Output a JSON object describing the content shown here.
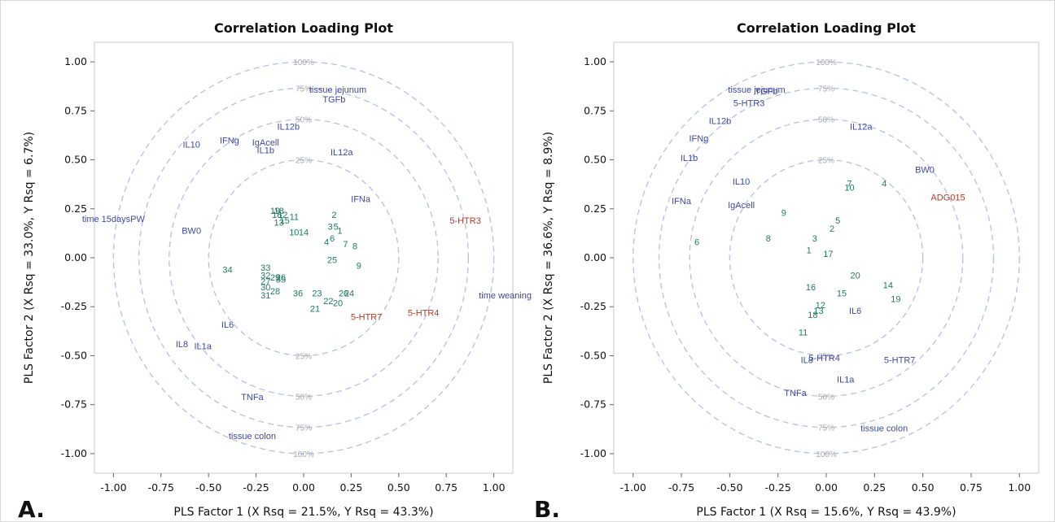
{
  "colors": {
    "frame": "#c8c8c8",
    "circle": "#b6bfe6",
    "x_variable": "#3d49a3",
    "y_variable": "#b03a2a",
    "observation": "#1f7a5e",
    "pct_label": "#a8a8a8"
  },
  "chart_data": [
    {
      "type": "scatter",
      "panel_letter": "A.",
      "title": "Correlation Loading Plot",
      "xlabel": "PLS Factor 1 (X Rsq = 21.5%, Y Rsq = 43.3%)",
      "ylabel": "PLS Factor 2 (X Rsq = 33.0%, Y Rsq = 6.7%)",
      "xlim": [
        -1.1,
        1.1
      ],
      "ylim": [
        -1.1,
        1.1
      ],
      "xticks": [
        "-1.00",
        "-0.75",
        "-0.50",
        "-0.25",
        "0.00",
        "0.25",
        "0.50",
        "0.75",
        "1.00"
      ],
      "yticks": [
        "1.00",
        "0.75",
        "0.50",
        "0.25",
        "0.00",
        "-0.25",
        "-0.50",
        "-0.75",
        "-1.00"
      ],
      "circles": [
        {
          "r": 1.0,
          "label": "100%"
        },
        {
          "r": 0.866,
          "label": "75%"
        },
        {
          "r": 0.707,
          "label": "50%"
        },
        {
          "r": 0.5,
          "label": "25%"
        }
      ],
      "x_variables": [
        {
          "label": "tissue jejunum",
          "x": 0.18,
          "y": 0.86
        },
        {
          "label": "TGFb",
          "x": 0.16,
          "y": 0.81
        },
        {
          "label": "IL12b",
          "x": -0.08,
          "y": 0.67
        },
        {
          "label": "IL10",
          "x": -0.59,
          "y": 0.58
        },
        {
          "label": "IFNg",
          "x": -0.39,
          "y": 0.6
        },
        {
          "label": "IgAcell",
          "x": -0.2,
          "y": 0.59
        },
        {
          "label": "IL1b",
          "x": -0.2,
          "y": 0.55
        },
        {
          "label": "IL12a",
          "x": 0.2,
          "y": 0.54
        },
        {
          "label": "IFNa",
          "x": 0.3,
          "y": 0.3
        },
        {
          "label": "time 15daysPW",
          "x": -1.0,
          "y": 0.2
        },
        {
          "label": "BW0",
          "x": -0.59,
          "y": 0.14
        },
        {
          "label": "time weaning",
          "x": 1.06,
          "y": -0.19
        },
        {
          "label": "IL6",
          "x": -0.4,
          "y": -0.34
        },
        {
          "label": "IL8",
          "x": -0.64,
          "y": -0.44
        },
        {
          "label": "IL1a",
          "x": -0.53,
          "y": -0.45
        },
        {
          "label": "TNFa",
          "x": -0.27,
          "y": -0.71
        },
        {
          "label": "tissue colon",
          "x": -0.27,
          "y": -0.91
        }
      ],
      "y_variables": [
        {
          "label": "5-HTR3",
          "x": 0.85,
          "y": 0.19
        },
        {
          "label": "5-HTR7",
          "x": 0.33,
          "y": -0.3
        },
        {
          "label": "5-HTR4",
          "x": 0.63,
          "y": -0.28
        }
      ],
      "observations": [
        {
          "label": "19",
          "x": -0.15,
          "y": 0.24
        },
        {
          "label": "18",
          "x": -0.13,
          "y": 0.24
        },
        {
          "label": "16",
          "x": -0.14,
          "y": 0.22
        },
        {
          "label": "12",
          "x": -0.11,
          "y": 0.22
        },
        {
          "label": "11",
          "x": -0.05,
          "y": 0.21
        },
        {
          "label": "13",
          "x": -0.13,
          "y": 0.18
        },
        {
          "label": "15",
          "x": -0.1,
          "y": 0.19
        },
        {
          "label": "10",
          "x": -0.05,
          "y": 0.13
        },
        {
          "label": "14",
          "x": 0.0,
          "y": 0.13
        },
        {
          "label": "2",
          "x": 0.16,
          "y": 0.22
        },
        {
          "label": "3",
          "x": 0.14,
          "y": 0.16
        },
        {
          "label": "5",
          "x": 0.17,
          "y": 0.16
        },
        {
          "label": "1",
          "x": 0.19,
          "y": 0.14
        },
        {
          "label": "6",
          "x": 0.15,
          "y": 0.1
        },
        {
          "label": "4",
          "x": 0.12,
          "y": 0.08
        },
        {
          "label": "7",
          "x": 0.22,
          "y": 0.07
        },
        {
          "label": "8",
          "x": 0.27,
          "y": 0.06
        },
        {
          "label": "25",
          "x": 0.15,
          "y": -0.01
        },
        {
          "label": "9",
          "x": 0.29,
          "y": -0.04
        },
        {
          "label": "34",
          "x": -0.4,
          "y": -0.06
        },
        {
          "label": "33",
          "x": -0.2,
          "y": -0.05
        },
        {
          "label": "32",
          "x": -0.2,
          "y": -0.09
        },
        {
          "label": "29",
          "x": -0.15,
          "y": -0.1
        },
        {
          "label": "26",
          "x": -0.12,
          "y": -0.1
        },
        {
          "label": "35",
          "x": -0.12,
          "y": -0.11
        },
        {
          "label": "27",
          "x": -0.2,
          "y": -0.12
        },
        {
          "label": "30",
          "x": -0.2,
          "y": -0.15
        },
        {
          "label": "28",
          "x": -0.15,
          "y": -0.17
        },
        {
          "label": "31",
          "x": -0.2,
          "y": -0.19
        },
        {
          "label": "36",
          "x": -0.03,
          "y": -0.18
        },
        {
          "label": "23",
          "x": 0.07,
          "y": -0.18
        },
        {
          "label": "26",
          "x": 0.21,
          "y": -0.18
        },
        {
          "label": "24",
          "x": 0.24,
          "y": -0.18
        },
        {
          "label": "22",
          "x": 0.13,
          "y": -0.22
        },
        {
          "label": "20",
          "x": 0.18,
          "y": -0.23
        },
        {
          "label": "21",
          "x": 0.06,
          "y": -0.26
        }
      ]
    },
    {
      "type": "scatter",
      "panel_letter": "B.",
      "title": "Correlation Loading Plot",
      "xlabel": "PLS Factor 1 (X Rsq = 15.6%, Y Rsq = 43.9%)",
      "ylabel": "PLS Factor 2 (X Rsq = 36.6%, Y Rsq = 8.9%)",
      "xlim": [
        -1.1,
        1.1
      ],
      "ylim": [
        -1.1,
        1.1
      ],
      "xticks": [
        "-1.00",
        "-0.75",
        "-0.50",
        "-0.25",
        "0.00",
        "0.25",
        "0.50",
        "0.75",
        "1.00"
      ],
      "yticks": [
        "1.00",
        "0.75",
        "0.50",
        "0.25",
        "0.00",
        "-0.25",
        "-0.50",
        "-0.75",
        "-1.00"
      ],
      "circles": [
        {
          "r": 1.0,
          "label": "100%"
        },
        {
          "r": 0.866,
          "label": "75%"
        },
        {
          "r": 0.707,
          "label": "50%"
        },
        {
          "r": 0.5,
          "label": "25%"
        }
      ],
      "x_variables": [
        {
          "label": "tissue jejunum",
          "x": -0.36,
          "y": 0.86
        },
        {
          "label": "TGFb",
          "x": -0.31,
          "y": 0.85
        },
        {
          "label": "5-HTR3",
          "x": -0.4,
          "y": 0.79
        },
        {
          "label": "IL12b",
          "x": -0.55,
          "y": 0.7
        },
        {
          "label": "IL12a",
          "x": 0.18,
          "y": 0.67
        },
        {
          "label": "IFNg",
          "x": -0.66,
          "y": 0.61
        },
        {
          "label": "IL1b",
          "x": -0.71,
          "y": 0.51
        },
        {
          "label": "BW0",
          "x": 0.51,
          "y": 0.45
        },
        {
          "label": "IL10",
          "x": -0.44,
          "y": 0.39
        },
        {
          "label": "IFNa",
          "x": -0.75,
          "y": 0.29
        },
        {
          "label": "IgAcell",
          "x": -0.44,
          "y": 0.27
        },
        {
          "label": "IL6",
          "x": 0.15,
          "y": -0.27
        },
        {
          "label": "IL8",
          "x": -0.1,
          "y": -0.52
        },
        {
          "label": "5-HTR4",
          "x": -0.01,
          "y": -0.51
        },
        {
          "label": "5-HTR7",
          "x": 0.38,
          "y": -0.52
        },
        {
          "label": "IL1a",
          "x": 0.1,
          "y": -0.62
        },
        {
          "label": "TNFa",
          "x": -0.16,
          "y": -0.69
        },
        {
          "label": "tissue colon",
          "x": 0.3,
          "y": -0.87
        }
      ],
      "y_variables": [
        {
          "label": "ADG015",
          "x": 0.63,
          "y": 0.31
        }
      ],
      "observations": [
        {
          "label": "7",
          "x": 0.12,
          "y": 0.38
        },
        {
          "label": "10",
          "x": 0.12,
          "y": 0.36
        },
        {
          "label": "4",
          "x": 0.3,
          "y": 0.38
        },
        {
          "label": "9",
          "x": -0.22,
          "y": 0.23
        },
        {
          "label": "5",
          "x": 0.06,
          "y": 0.19
        },
        {
          "label": "2",
          "x": 0.03,
          "y": 0.15
        },
        {
          "label": "8",
          "x": -0.3,
          "y": 0.1
        },
        {
          "label": "6",
          "x": -0.67,
          "y": 0.08
        },
        {
          "label": "3",
          "x": -0.06,
          "y": 0.1
        },
        {
          "label": "1",
          "x": -0.09,
          "y": 0.04
        },
        {
          "label": "17",
          "x": 0.01,
          "y": 0.02
        },
        {
          "label": "20",
          "x": 0.15,
          "y": -0.09
        },
        {
          "label": "16",
          "x": -0.08,
          "y": -0.15
        },
        {
          "label": "15",
          "x": 0.08,
          "y": -0.18
        },
        {
          "label": "14",
          "x": 0.32,
          "y": -0.14
        },
        {
          "label": "19",
          "x": 0.36,
          "y": -0.21
        },
        {
          "label": "12",
          "x": -0.03,
          "y": -0.24
        },
        {
          "label": "13",
          "x": -0.04,
          "y": -0.27
        },
        {
          "label": "18",
          "x": -0.07,
          "y": -0.29
        },
        {
          "label": "11",
          "x": -0.12,
          "y": -0.38
        }
      ]
    }
  ]
}
